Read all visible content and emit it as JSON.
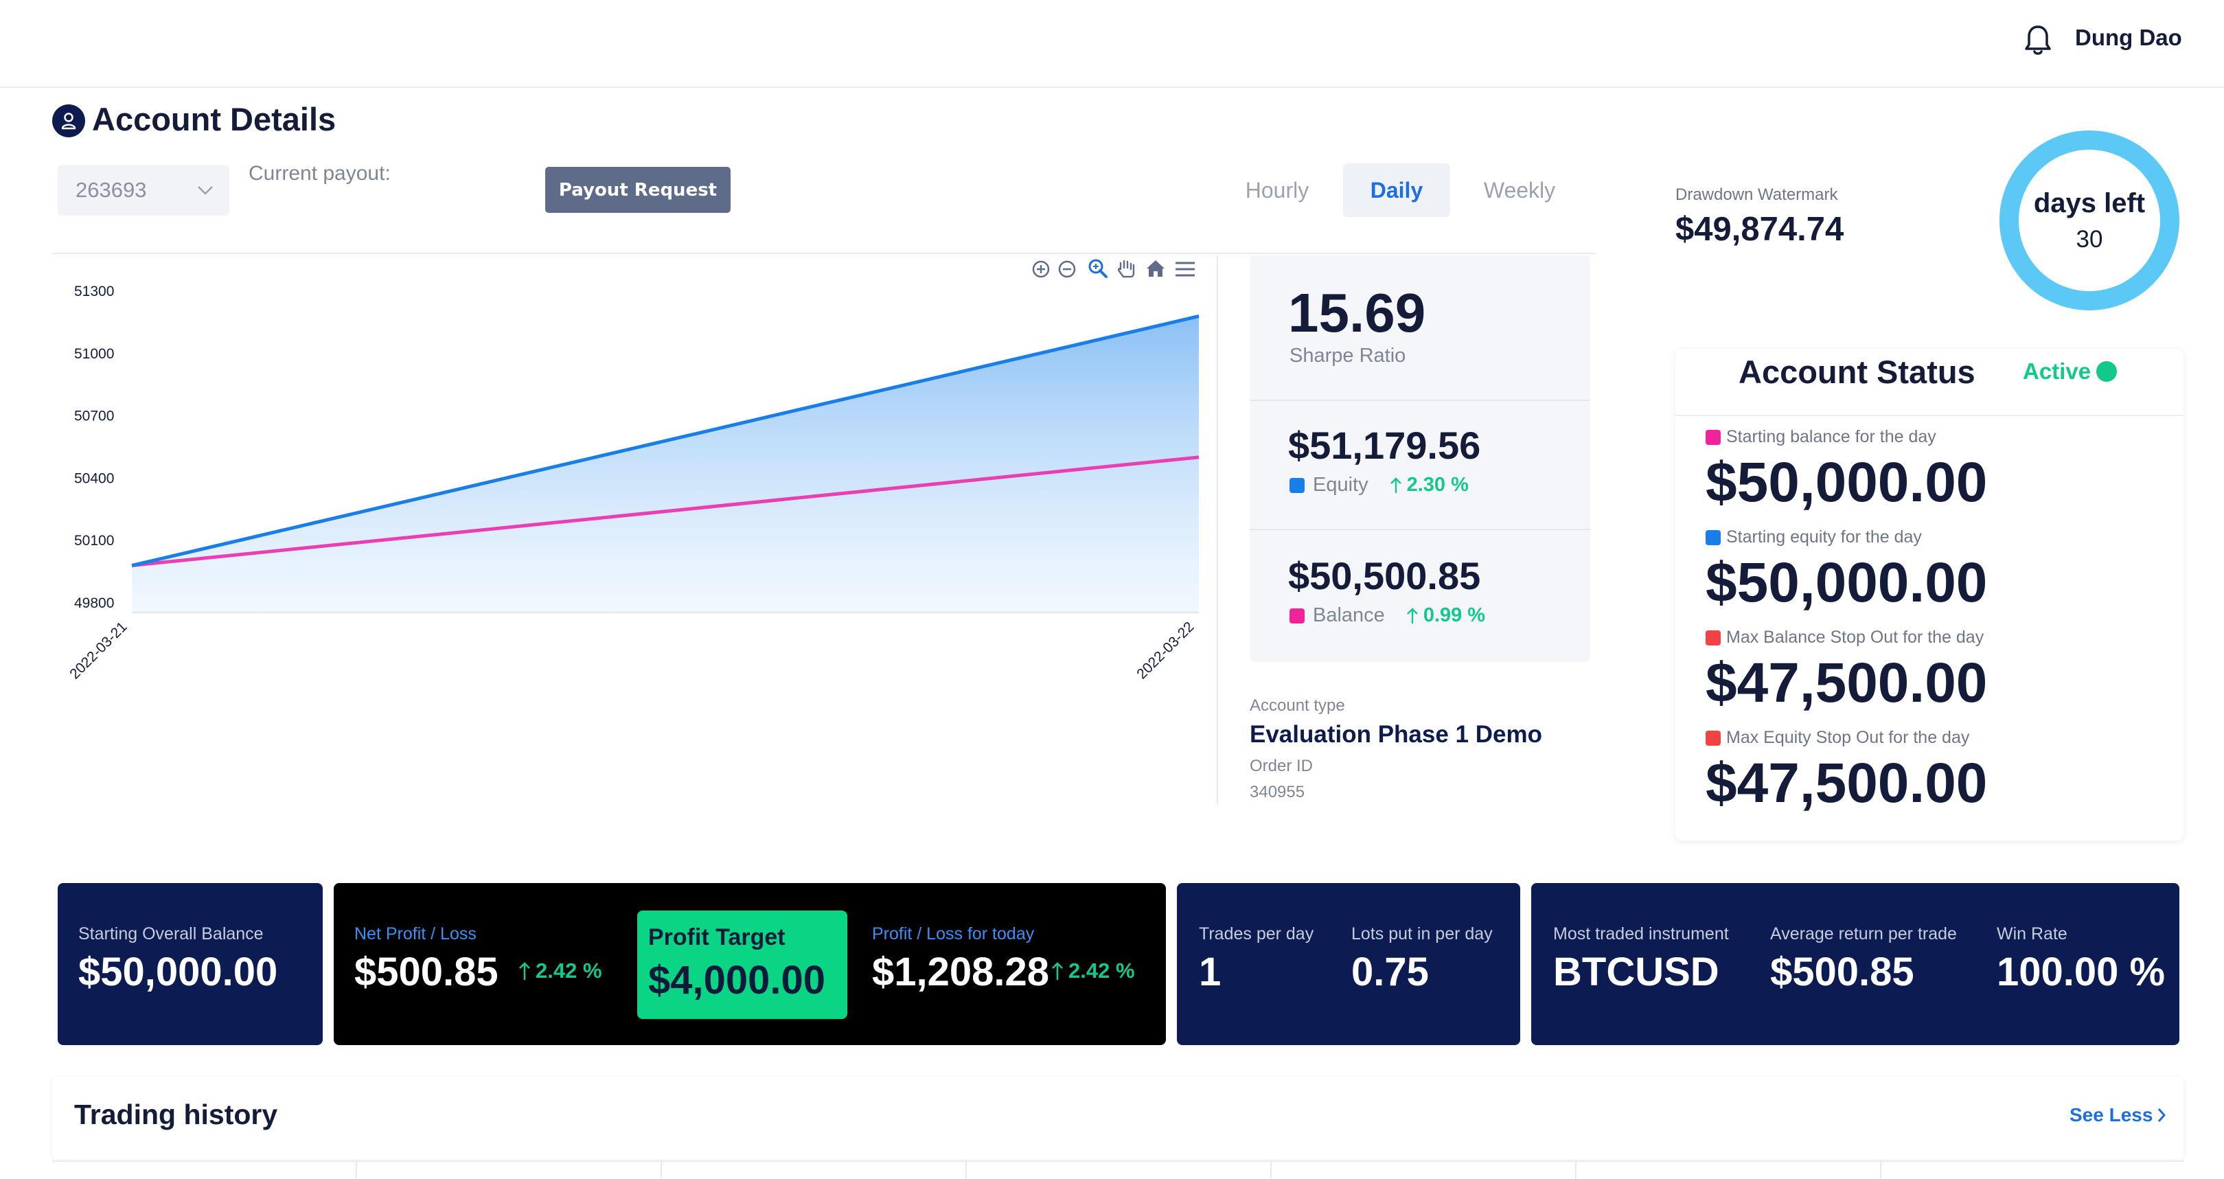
{
  "topbar": {
    "user_name": "Dung Dao",
    "bell_icon": "bell-icon"
  },
  "header": {
    "title": "Account Details",
    "title_icon": "user-icon"
  },
  "controls": {
    "account_id": "263693",
    "payout_label": "Current payout:",
    "payout_button": "Payout Request",
    "periods": [
      "Hourly",
      "Daily",
      "Weekly"
    ],
    "selected_period": "Daily"
  },
  "chart_toolbar": [
    "zoom-in-icon",
    "zoom-out-icon",
    "magnifier-icon",
    "pan-hand-icon",
    "home-icon",
    "menu-icon"
  ],
  "chart_data": {
    "type": "area",
    "x": [
      "2022-03-21",
      "2022-03-22"
    ],
    "y_ticks": [
      "51300",
      "51000",
      "50700",
      "50400",
      "50100",
      "49800"
    ],
    "ylim": [
      49800,
      51300
    ],
    "series": [
      {
        "name": "Equity",
        "values": [
          49980,
          51179.56
        ],
        "color": "#1a7ee8"
      },
      {
        "name": "Balance",
        "values": [
          49980,
          50500.85
        ],
        "color": "#e83fb5"
      }
    ]
  },
  "stats": {
    "sharpe_value": "15.69",
    "sharpe_label": "Sharpe Ratio",
    "equity_value": "$51,179.56",
    "equity_label": "Equity",
    "equity_pct": "2.30 %",
    "balance_value": "$50,500.85",
    "balance_label": "Balance",
    "balance_pct": "0.99 %"
  },
  "account": {
    "type_label": "Account type",
    "type_value": "Evaluation Phase 1 Demo",
    "order_label": "Order ID",
    "order_value": "340955"
  },
  "watermark": {
    "label": "Drawdown Watermark",
    "value": "$49,874.74"
  },
  "days": {
    "label": "days left",
    "value": "30"
  },
  "status": {
    "title": "Account Status",
    "state": "Active",
    "items": [
      {
        "label": "Starting balance for the day",
        "value": "$50,000.00",
        "color": "#f0249a"
      },
      {
        "label": "Starting equity for the day",
        "value": "$50,000.00",
        "color": "#1a7ee8"
      },
      {
        "label": "Max Balance Stop Out for the day",
        "value": "$47,500.00",
        "color": "#f04444"
      },
      {
        "label": "Max Equity Stop Out for the day",
        "value": "$47,500.00",
        "color": "#f04444"
      }
    ]
  },
  "cards": {
    "starting_label": "Starting Overall Balance",
    "starting_value": "$50,000.00",
    "net_label": "Net Profit / Loss",
    "net_value": "$500.85",
    "net_pct": "2.42 %",
    "target_label": "Profit Target",
    "target_value": "$4,000.00",
    "today_label": "Profit / Loss for today",
    "today_value": "$1,208.28",
    "today_pct": "2.42 %",
    "trades_label": "Trades per day",
    "trades_value": "1",
    "lots_label": "Lots put in per day",
    "lots_value": "0.75",
    "instrument_label": "Most traded instrument",
    "instrument_value": "BTCUSD",
    "avg_label": "Average return per trade",
    "avg_value": "$500.85",
    "win_label": "Win Rate",
    "win_value": "100.00 %"
  },
  "history": {
    "title": "Trading history",
    "toggle": "See Less"
  },
  "colors": {
    "navy": "#0c1b52",
    "green": "#12c98a",
    "accent_blue": "#1d6fe0",
    "ring": "#5bc8f5"
  }
}
